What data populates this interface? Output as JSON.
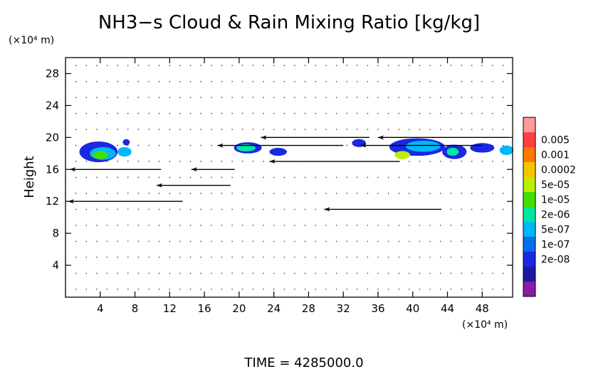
{
  "chart_data": {
    "type": "heatmap",
    "title": "NH3−s Cloud & Rain Mixing Ratio [kg/kg]",
    "xlabel": "",
    "ylabel": "Height",
    "x_unit_label": "(×10⁴ m)",
    "y_unit_label": "(×10⁴ m)",
    "time_label": "TIME  =  4285000.0",
    "xlim": [
      0,
      51.5
    ],
    "ylim": [
      0,
      30
    ],
    "x_ticks": [
      4,
      8,
      12,
      16,
      20,
      24,
      28,
      32,
      36,
      40,
      44,
      48
    ],
    "y_ticks": [
      4,
      8,
      12,
      16,
      20,
      24,
      28
    ],
    "colorbar": {
      "labels": [
        "0.005",
        "0.001",
        "0.0002",
        "5e-05",
        "1e-05",
        "2e-06",
        "5e-07",
        "1e-07",
        "2e-08"
      ],
      "colors": [
        "#ff9a9a",
        "#ff4040",
        "#ff7800",
        "#f5c400",
        "#b8f000",
        "#44e000",
        "#00e8a0",
        "#00b8f8",
        "#0070f0",
        "#1a28e0",
        "#1a1aa0",
        "#8a1aa8"
      ]
    },
    "cloud_regions": [
      {
        "x": 3.8,
        "y": 18.2,
        "rx": 2.2,
        "ry": 1.3,
        "color": "#1a28e0"
      },
      {
        "x": 4.3,
        "y": 18.0,
        "rx": 1.5,
        "ry": 0.8,
        "color": "#00b8f8"
      },
      {
        "x": 4.0,
        "y": 17.8,
        "rx": 0.9,
        "ry": 0.5,
        "color": "#44e000"
      },
      {
        "x": 6.8,
        "y": 18.2,
        "rx": 0.8,
        "ry": 0.6,
        "color": "#00b8f8"
      },
      {
        "x": 7.0,
        "y": 19.4,
        "rx": 0.4,
        "ry": 0.4,
        "color": "#1a28e0"
      },
      {
        "x": 21.0,
        "y": 18.7,
        "rx": 1.6,
        "ry": 0.7,
        "color": "#1a28e0"
      },
      {
        "x": 20.8,
        "y": 18.7,
        "rx": 1.1,
        "ry": 0.45,
        "color": "#00e8a0"
      },
      {
        "x": 24.5,
        "y": 18.2,
        "rx": 1.0,
        "ry": 0.5,
        "color": "#1a28e0"
      },
      {
        "x": 33.8,
        "y": 19.3,
        "rx": 0.8,
        "ry": 0.5,
        "color": "#1a28e0"
      },
      {
        "x": 40.5,
        "y": 18.8,
        "rx": 3.2,
        "ry": 1.1,
        "color": "#1a28e0"
      },
      {
        "x": 41.2,
        "y": 18.9,
        "rx": 2.0,
        "ry": 0.7,
        "color": "#00b8f8"
      },
      {
        "x": 38.8,
        "y": 17.8,
        "rx": 0.9,
        "ry": 0.5,
        "color": "#b8f000"
      },
      {
        "x": 44.8,
        "y": 18.2,
        "rx": 1.4,
        "ry": 0.9,
        "color": "#1a28e0"
      },
      {
        "x": 44.6,
        "y": 18.2,
        "rx": 0.7,
        "ry": 0.5,
        "color": "#00e8a0"
      },
      {
        "x": 48.0,
        "y": 18.7,
        "rx": 1.4,
        "ry": 0.6,
        "color": "#1a28e0"
      },
      {
        "x": 50.8,
        "y": 18.4,
        "rx": 0.8,
        "ry": 0.6,
        "color": "#00b8f8"
      }
    ],
    "wind_vectors": [
      {
        "x": 0.3,
        "y": 12,
        "u": 13.2,
        "v": 0
      },
      {
        "x": 10.5,
        "y": 14,
        "u": 8.5,
        "v": 0
      },
      {
        "x": 29.8,
        "y": 11,
        "u": 13.5,
        "v": 0
      },
      {
        "x": 0.5,
        "y": 16,
        "u": 10.5,
        "v": 0
      },
      {
        "x": 14.5,
        "y": 16,
        "u": 5.0,
        "v": 0
      },
      {
        "x": 23.5,
        "y": 17,
        "u": 15.0,
        "v": 0
      },
      {
        "x": 22.5,
        "y": 20,
        "u": 12.5,
        "v": 0
      },
      {
        "x": 36.0,
        "y": 20,
        "u": 15.0,
        "v": 0
      },
      {
        "x": 17.5,
        "y": 19,
        "u": 14.5,
        "v": 0
      },
      {
        "x": 34.0,
        "y": 19,
        "u": 14.0,
        "v": 0
      }
    ],
    "grid": false,
    "legend_position": "right"
  }
}
